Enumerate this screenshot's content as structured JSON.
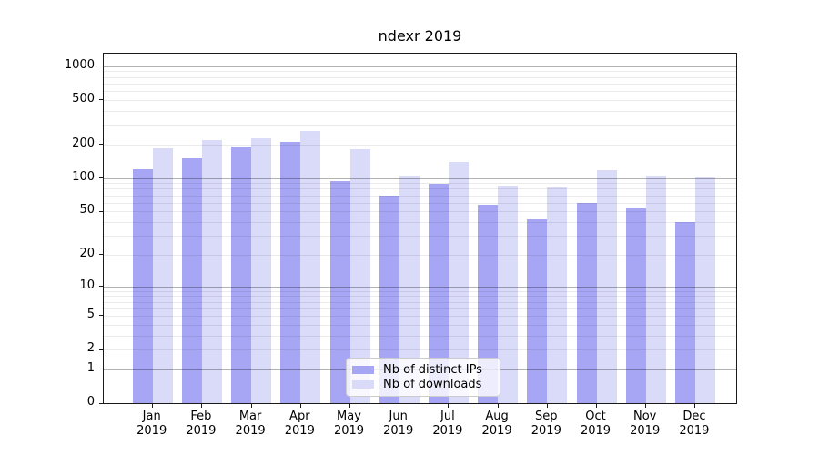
{
  "title": "ndexr 2019",
  "chart_data": {
    "type": "bar",
    "title": "ndexr 2019",
    "categories": [
      "Jan",
      "Feb",
      "Mar",
      "Apr",
      "May",
      "Jun",
      "Jul",
      "Aug",
      "Sep",
      "Oct",
      "Nov",
      "Dec"
    ],
    "year_label": "2019",
    "series": [
      {
        "name": "Nb of distinct IPs",
        "color": "#a6a6f5",
        "values": [
          120,
          150,
          190,
          210,
          93,
          69,
          88,
          57,
          42,
          60,
          53,
          40
        ]
      },
      {
        "name": "Nb of downloads",
        "color": "#dadaf9",
        "values": [
          185,
          220,
          225,
          265,
          180,
          105,
          140,
          86,
          82,
          118,
          105,
          102
        ]
      }
    ],
    "yscale": "log1p",
    "yticks": [
      0,
      1,
      2,
      5,
      10,
      20,
      50,
      100,
      200,
      500,
      1000
    ],
    "ylim": [
      0,
      1290
    ],
    "grid": "on",
    "grid_above_bars": true,
    "legend_position": "inside lower-center",
    "colors": {
      "major_grid": "#b3b3b3",
      "minor_grid": "#ebebeb",
      "axis": "#1a1a1a",
      "background": "#ffffff"
    }
  }
}
